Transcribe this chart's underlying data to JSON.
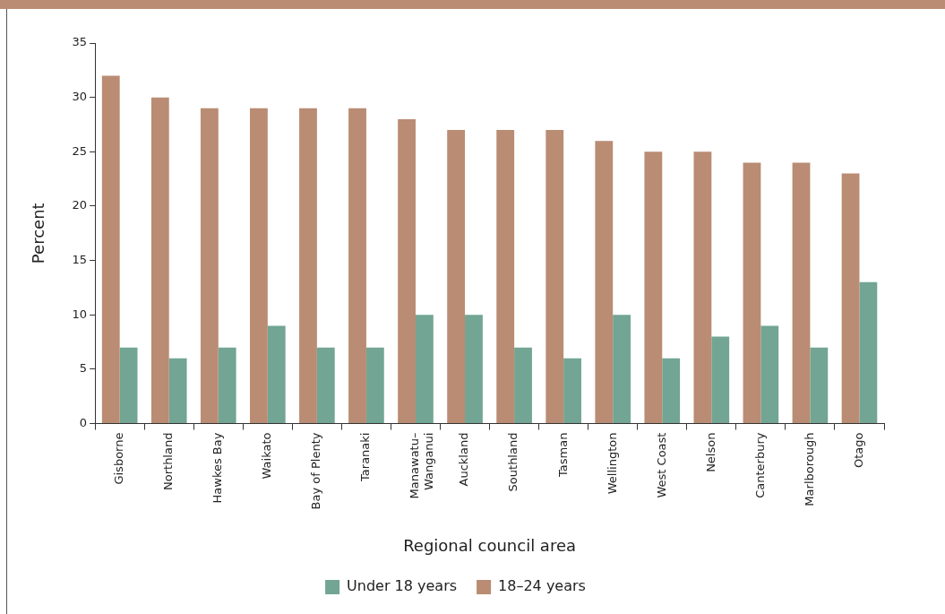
{
  "chart_data": {
    "type": "bar",
    "xlabel": "Regional council area",
    "ylabel": "Percent",
    "categories": [
      "Gisborne",
      "Northland",
      "Hawkes Bay",
      "Waikato",
      "Bay of Plenty",
      "Taranaki",
      "Manawatu–Wanganui",
      "Auckland",
      "Southland",
      "Tasman",
      "Wellington",
      "West Coast",
      "Nelson",
      "Canterbury",
      "Marlborough",
      "Otago"
    ],
    "series": [
      {
        "name": "18–24 years",
        "color": "#b98c73",
        "values": [
          32,
          30,
          29,
          29,
          29,
          29,
          28,
          27,
          27,
          27,
          26,
          25,
          25,
          24,
          24,
          23
        ]
      },
      {
        "name": "Under 18 years",
        "color": "#72a593",
        "values": [
          7,
          6,
          7,
          9,
          7,
          7,
          10,
          10,
          7,
          6,
          10,
          6,
          8,
          9,
          7,
          13
        ]
      }
    ],
    "ylim": [
      0,
      35
    ],
    "yticks": [
      0,
      5,
      10,
      15,
      20,
      25,
      30,
      35
    ],
    "grid": false,
    "legend": "bottom"
  }
}
